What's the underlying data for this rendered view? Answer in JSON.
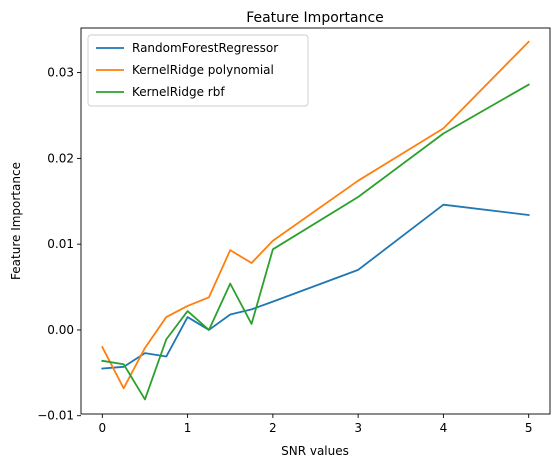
{
  "chart_data": {
    "type": "line",
    "title": "Feature Importance",
    "xlabel": "SNR values",
    "ylabel": "Feature Importance",
    "xlim": [
      -0.25,
      5.25
    ],
    "ylim": [
      -0.0098,
      0.0352
    ],
    "xticks": [
      0,
      1,
      2,
      3,
      4,
      5
    ],
    "xtick_labels": [
      "0",
      "1",
      "2",
      "3",
      "4",
      "5"
    ],
    "yticks": [
      -0.01,
      0.0,
      0.01,
      0.02,
      0.03
    ],
    "ytick_labels": [
      "−0.01",
      "0.00",
      "0.01",
      "0.02",
      "0.03"
    ],
    "grid": false,
    "legend_position": "top-left",
    "x": [
      0,
      0.25,
      0.5,
      0.75,
      1,
      1.25,
      1.5,
      1.75,
      2,
      3,
      4,
      5
    ],
    "series": [
      {
        "name": "RandomForestRegressor",
        "color": "#1f77b4",
        "values": [
          -0.0045,
          -0.0043,
          -0.0027,
          -0.0031,
          0.0015,
          0.0,
          0.0018,
          0.0024,
          0.0033,
          0.007,
          0.0146,
          0.0134
        ]
      },
      {
        "name": "KernelRidge polynomial",
        "color": "#ff7f0e",
        "values": [
          -0.002,
          -0.0068,
          -0.0021,
          0.0015,
          0.0028,
          0.0038,
          0.0093,
          0.0078,
          0.0104,
          0.0174,
          0.0235,
          0.0336
        ]
      },
      {
        "name": "KernelRidge rbf",
        "color": "#2ca02c",
        "values": [
          -0.0036,
          -0.004,
          -0.0081,
          -0.0011,
          0.0022,
          0.0,
          0.0054,
          0.0007,
          0.0094,
          0.0155,
          0.0229,
          0.0286
        ]
      }
    ]
  }
}
